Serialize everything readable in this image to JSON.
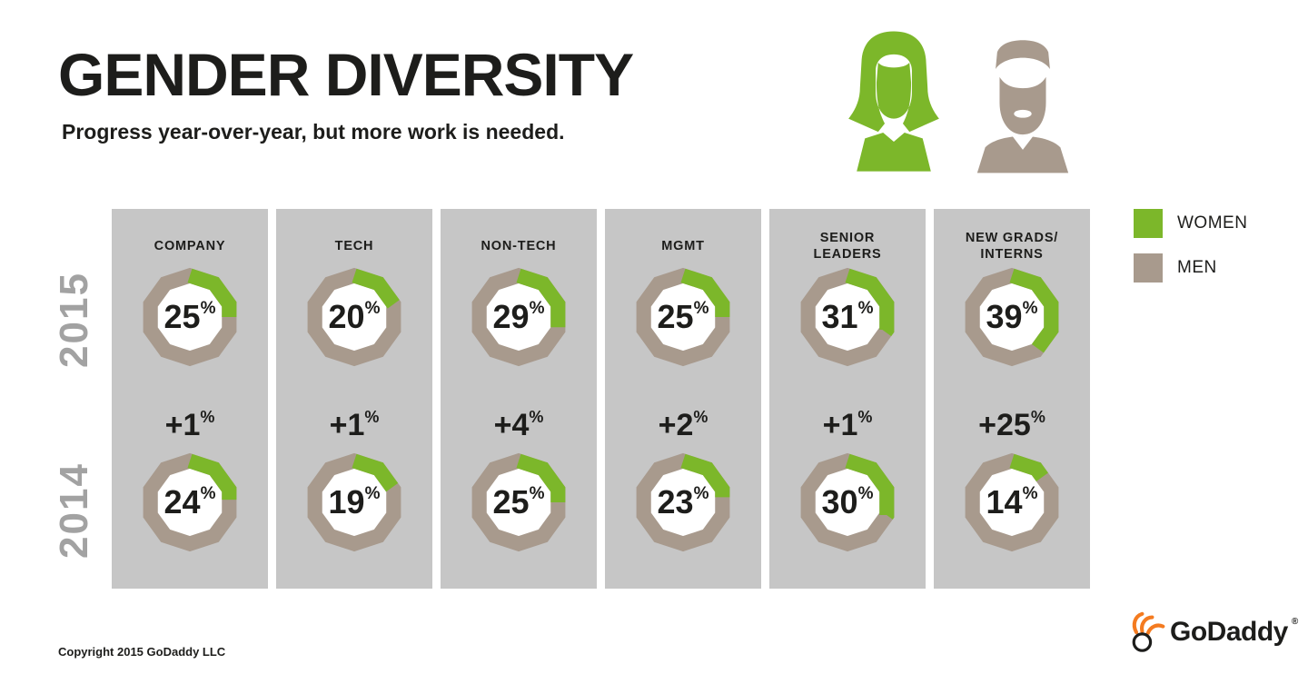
{
  "header": {
    "title": "GENDER DIVERSITY",
    "subtitle": "Progress year-over-year, but more work is needed."
  },
  "rows": {
    "top": "2015",
    "bottom": "2014"
  },
  "footer": {
    "copyright": "Copyright 2015 GoDaddy LLC",
    "logo_text": "GoDaddy",
    "logo_registered": "®"
  },
  "chart_data": {
    "type": "donut-grid",
    "title": "GENDER DIVERSITY",
    "subtitle": "Progress year-over-year, but more work is needed.",
    "unit": "%",
    "categories": [
      "COMPANY",
      "TECH",
      "NON-TECH",
      "MGMT",
      "SENIOR\nLEADERS",
      "NEW GRADS/\nINTERNS"
    ],
    "series": [
      {
        "name": "2015",
        "values": [
          25,
          20,
          29,
          25,
          31,
          39
        ]
      },
      {
        "name": "2014",
        "values": [
          24,
          19,
          25,
          23,
          30,
          14
        ]
      }
    ],
    "deltas": [
      "+1",
      "+1",
      "+4",
      "+2",
      "+1",
      "+25"
    ],
    "legend": [
      {
        "label": "WOMEN",
        "color": "#7cb72a"
      },
      {
        "label": "MEN",
        "color": "#a89a8d"
      }
    ],
    "colors": {
      "women": "#7cb72a",
      "men": "#a89a8d",
      "column_bg": "#c6c6c6",
      "year_label": "#a2a2a2",
      "logo_orange": "#f47b20",
      "text": "#1d1d1b"
    },
    "value_range": [
      0,
      100
    ],
    "arc_start": "top",
    "arc_direction": "clockwise",
    "legend_position": "right"
  }
}
